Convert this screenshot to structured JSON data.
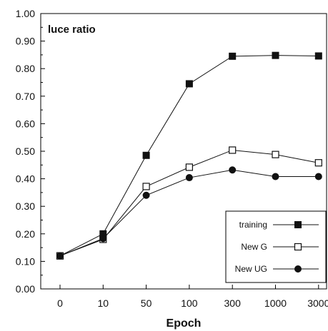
{
  "chart_data": {
    "type": "line",
    "inner_title": "luce ratio",
    "xlabel": "Epoch",
    "ylabel": "",
    "categories": [
      "0",
      "10",
      "50",
      "100",
      "300",
      "1000",
      "3000"
    ],
    "y_ticks": [
      "0.00",
      "0.10",
      "0.20",
      "0.30",
      "0.40",
      "0.50",
      "0.60",
      "0.70",
      "0.80",
      "0.90",
      "1.00"
    ],
    "ylim": [
      0,
      1
    ],
    "legend_position": "bottom-right",
    "series": [
      {
        "name": "training",
        "marker": "square-filled",
        "values": [
          0.12,
          0.2,
          0.485,
          0.745,
          0.845,
          0.848,
          0.846
        ]
      },
      {
        "name": "New G",
        "marker": "square-open",
        "values": [
          0.12,
          0.18,
          0.372,
          0.442,
          0.504,
          0.488,
          0.458
        ]
      },
      {
        "name": "New UG",
        "marker": "circle-filled",
        "values": [
          0.12,
          0.183,
          0.34,
          0.404,
          0.432,
          0.408,
          0.408
        ]
      }
    ]
  }
}
